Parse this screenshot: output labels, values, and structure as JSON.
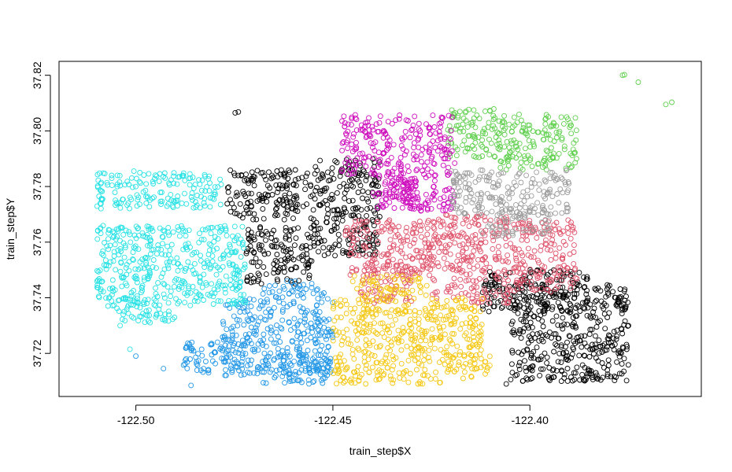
{
  "chart_data": {
    "type": "scatter",
    "title": "",
    "xlabel": "train_step$X",
    "ylabel": "train_step$Y",
    "xlim": [
      -122.5195,
      -122.3565
    ],
    "ylim": [
      37.7045,
      37.825
    ],
    "x_ticks": [
      {
        "value": -122.5,
        "label": "-122.50"
      },
      {
        "value": -122.45,
        "label": "-122.45"
      },
      {
        "value": -122.4,
        "label": "-122.40"
      }
    ],
    "y_ticks": [
      {
        "value": 37.72,
        "label": "37.72"
      },
      {
        "value": 37.74,
        "label": "37.74"
      },
      {
        "value": 37.76,
        "label": "37.76"
      },
      {
        "value": 37.78,
        "label": "37.78"
      },
      {
        "value": 37.8,
        "label": "37.80"
      },
      {
        "value": 37.82,
        "label": "37.82"
      }
    ],
    "marker": "open-circle",
    "grid": false,
    "legend": "none",
    "series": [
      {
        "color": "#000000",
        "regions": [
          {
            "x": [
              -122.477,
              -122.455
            ],
            "y": [
              37.768,
              37.786
            ]
          },
          {
            "x": [
              -122.455,
              -122.438
            ],
            "y": [
              37.755,
              37.79
            ]
          },
          {
            "x": [
              -122.472,
              -122.455
            ],
            "y": [
              37.745,
              37.766
            ]
          },
          {
            "x": [
              -122.405,
              -122.375
            ],
            "y": [
              37.71,
              37.745
            ]
          },
          {
            "x": [
              -122.412,
              -122.385
            ],
            "y": [
              37.735,
              37.75
            ]
          }
        ],
        "points": [
          [
            -122.4748,
            37.8065
          ],
          [
            -122.474,
            37.8068
          ],
          [
            -122.392,
            37.71
          ],
          [
            -122.406,
            37.709
          ],
          [
            -122.375,
            37.73
          ]
        ]
      },
      {
        "color": "#DF536B",
        "regions": [
          {
            "x": [
              -122.447,
              -122.425
            ],
            "y": [
              37.748,
              37.768
            ]
          },
          {
            "x": [
              -122.425,
              -122.405
            ],
            "y": [
              37.738,
              37.77
            ]
          },
          {
            "x": [
              -122.405,
              -122.388
            ],
            "y": [
              37.742,
              37.768
            ]
          },
          {
            "x": [
              -122.443,
              -122.43
            ],
            "y": [
              37.738,
              37.752
            ]
          }
        ],
        "points": []
      },
      {
        "color": "#61D04F",
        "regions": [
          {
            "x": [
              -122.421,
              -122.408
            ],
            "y": [
              37.79,
              37.808
            ]
          },
          {
            "x": [
              -122.408,
              -122.388
            ],
            "y": [
              37.786,
              37.806
            ]
          }
        ],
        "points": [
          [
            -122.3765,
            37.82
          ],
          [
            -122.376,
            37.8202
          ],
          [
            -122.3725,
            37.8175
          ],
          [
            -122.3655,
            37.8095
          ],
          [
            -122.364,
            37.8103
          ]
        ]
      },
      {
        "color": "#2297E6",
        "regions": [
          {
            "x": [
              -122.478,
              -122.45
            ],
            "y": [
              37.712,
              37.74
            ]
          },
          {
            "x": [
              -122.488,
              -122.472
            ],
            "y": [
              37.713,
              37.724
            ]
          },
          {
            "x": [
              -122.468,
              -122.45
            ],
            "y": [
              37.709,
              37.72
            ]
          },
          {
            "x": [
              -122.468,
              -122.452
            ],
            "y": [
              37.74,
              37.746
            ]
          }
        ],
        "points": [
          [
            -122.493,
            37.7145
          ],
          [
            -122.486,
            37.7085
          ],
          [
            -122.5,
            37.719
          ]
        ]
      },
      {
        "color": "#28E2E5",
        "regions": [
          {
            "x": [
              -122.51,
              -122.478
            ],
            "y": [
              37.772,
              37.785
            ]
          },
          {
            "x": [
              -122.51,
              -122.472
            ],
            "y": [
              37.737,
              37.766
            ]
          },
          {
            "x": [
              -122.505,
              -122.49
            ],
            "y": [
              37.731,
              37.74
            ]
          }
        ],
        "points": [
          [
            -122.504,
            37.73
          ],
          [
            -122.5005,
            37.7855
          ],
          [
            -122.5015,
            37.7215
          ]
        ]
      },
      {
        "color": "#CD0BBC",
        "regions": [
          {
            "x": [
              -122.448,
              -122.437
            ],
            "y": [
              37.783,
              37.806
            ]
          },
          {
            "x": [
              -122.437,
              -122.419
            ],
            "y": [
              37.771,
              37.806
            ]
          },
          {
            "x": [
              -122.44,
              -122.43
            ],
            "y": [
              37.772,
              37.782
            ]
          }
        ],
        "points": []
      },
      {
        "color": "#F5C710",
        "regions": [
          {
            "x": [
              -122.45,
              -122.412
            ],
            "y": [
              37.718,
              37.74
            ]
          },
          {
            "x": [
              -122.45,
              -122.42
            ],
            "y": [
              37.709,
              37.718
            ]
          },
          {
            "x": [
              -122.42,
              -122.41
            ],
            "y": [
              37.71,
              37.72
            ]
          },
          {
            "x": [
              -122.445,
              -122.426
            ],
            "y": [
              37.74,
              37.748
            ]
          }
        ],
        "points": []
      },
      {
        "color": "#9E9E9E",
        "regions": [
          {
            "x": [
              -122.42,
              -122.39
            ],
            "y": [
              37.77,
              37.786
            ]
          },
          {
            "x": [
              -122.412,
              -122.395
            ],
            "y": [
              37.762,
              37.772
            ]
          }
        ],
        "points": []
      }
    ]
  }
}
